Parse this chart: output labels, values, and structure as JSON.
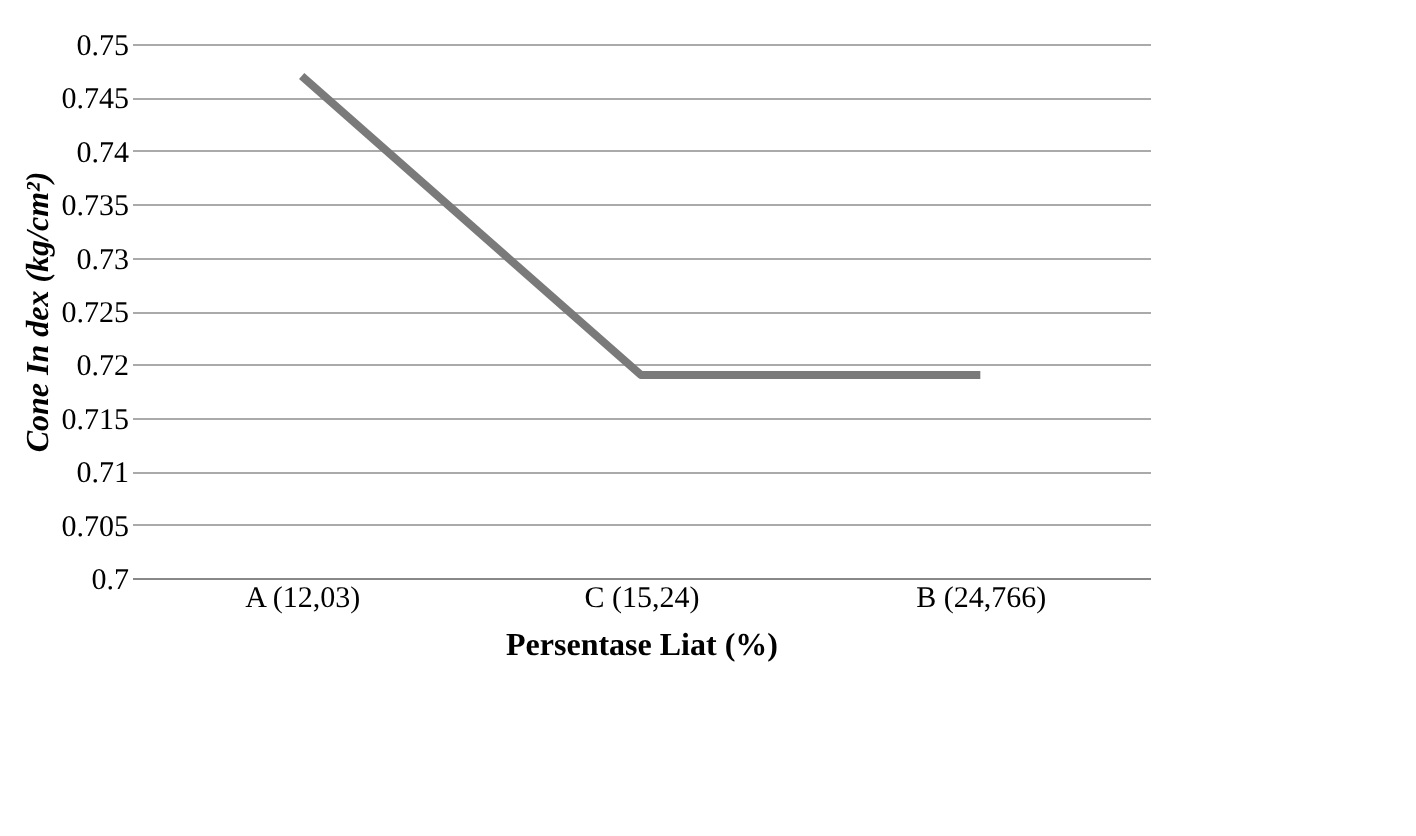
{
  "chart_data": {
    "type": "line",
    "xlabel": "Persentase Liat (%)",
    "ylabel": "Cone In dex (kg/cm²)",
    "categories": [
      "A (12,03)",
      "C (15,24)",
      "B (24,766)"
    ],
    "series": [
      {
        "color": "#7a7a7a",
        "values": [
          0.747,
          0.719,
          0.719
        ]
      }
    ],
    "ylim": [
      0.7,
      0.75
    ],
    "yticks": [
      0.7,
      0.705,
      0.71,
      0.715,
      0.72,
      0.725,
      0.73,
      0.735,
      0.74,
      0.745,
      0.75
    ],
    "grid": "y",
    "marker": "none",
    "line_style": "solid"
  }
}
